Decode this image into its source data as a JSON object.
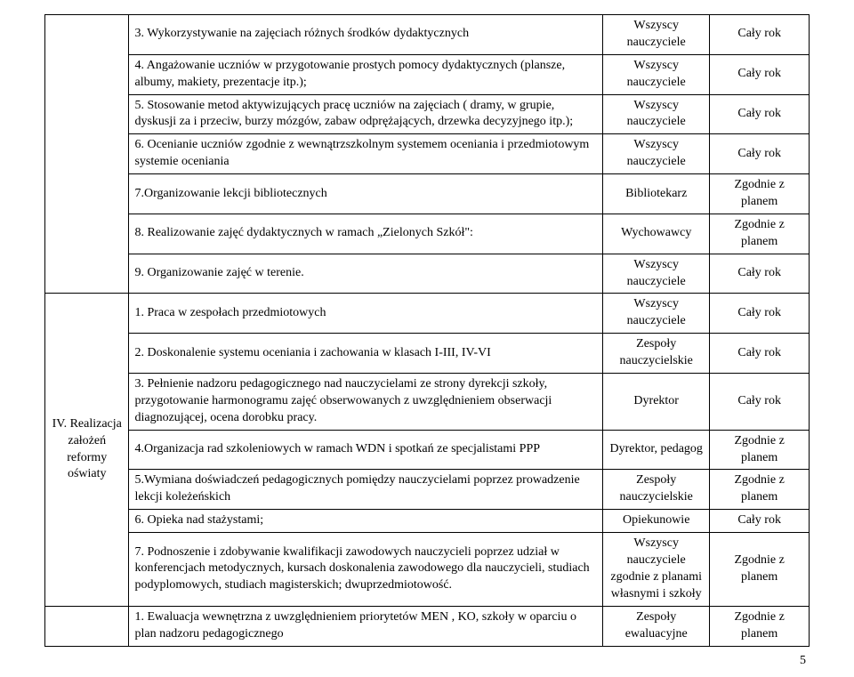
{
  "group1": {
    "rows": [
      {
        "task": "3. Wykorzystywanie na zajęciach różnych środków dydaktycznych",
        "who": "Wszyscy nauczyciele",
        "when": "Cały rok"
      },
      {
        "task": "4. Angażowanie uczniów w przygotowanie prostych pomocy dydaktycznych (plansze, albumy, makiety, prezentacje itp.);",
        "who": "Wszyscy nauczyciele",
        "when": "Cały rok"
      },
      {
        "task": "5. Stosowanie metod aktywizujących pracę uczniów na zajęciach ( dramy, w grupie, dyskusji za i przeciw, burzy mózgów, zabaw odprężających, drzewka decyzyjnego itp.);",
        "who": "Wszyscy nauczyciele",
        "when": "Cały rok"
      },
      {
        "task": "6. Ocenianie uczniów zgodnie z wewnątrzszkolnym systemem oceniania i przedmiotowym systemie oceniania",
        "who": "Wszyscy nauczyciele",
        "when": "Cały rok"
      },
      {
        "task": "7.Organizowanie lekcji bibliotecznych",
        "who": "Bibliotekarz",
        "when": "Zgodnie z planem"
      },
      {
        "task": "8. Realizowanie zajęć dydaktycznych w ramach „Zielonych Szkół\":",
        "who": "Wychowawcy",
        "when": "Zgodnie z planem"
      },
      {
        "task": "9. Organizowanie zajęć w terenie.",
        "who": "Wszyscy nauczyciele",
        "when": "Cały rok"
      }
    ]
  },
  "group2": {
    "section_label": "IV. Realizacja założeń reformy oświaty",
    "rows": [
      {
        "task": "1. Praca w zespołach przedmiotowych",
        "who": "Wszyscy nauczyciele",
        "when": "Cały rok"
      },
      {
        "task": "2. Doskonalenie systemu oceniania i zachowania w klasach I-III, IV-VI",
        "who": "Zespoły nauczycielskie",
        "when": "Cały rok"
      },
      {
        "task": "3. Pełnienie nadzoru pedagogicznego nad nauczycielami ze strony dyrekcji szkoły, przygotowanie harmonogramu zajęć obserwowanych z uwzględnieniem obserwacji diagnozującej, ocena dorobku pracy.",
        "who": "Dyrektor",
        "when": "Cały rok"
      },
      {
        "task": "4.Organizacja rad szkoleniowych w ramach WDN i spotkań ze specjalistami PPP",
        "who": "Dyrektor, pedagog",
        "when": "Zgodnie z planem"
      },
      {
        "task": "5.Wymiana doświadczeń pedagogicznych pomiędzy nauczycielami poprzez prowadzenie lekcji koleżeńskich",
        "who": "Zespoły nauczycielskie",
        "when": "Zgodnie z planem"
      },
      {
        "task": "6. Opieka nad stażystami;",
        "who": "Opiekunowie",
        "when": "Cały rok"
      },
      {
        "task": "7. Podnoszenie i zdobywanie kwalifikacji zawodowych nauczycieli poprzez udział w konferencjach metodycznych, kursach doskonalenia zawodowego dla nauczycieli, studiach podyplomowych, studiach magisterskich; dwuprzedmiotowość.",
        "who": "Wszyscy nauczyciele zgodnie z planami własnymi i szkoły",
        "when": "Zgodnie z planem"
      }
    ]
  },
  "group3": {
    "rows": [
      {
        "task": "1. Ewaluacja wewnętrzna z uwzględnieniem priorytetów MEN , KO, szkoły w oparciu o plan nadzoru pedagogicznego",
        "who": "Zespoły ewaluacyjne",
        "when": "Zgodnie z planem"
      }
    ]
  },
  "page_number": "5"
}
